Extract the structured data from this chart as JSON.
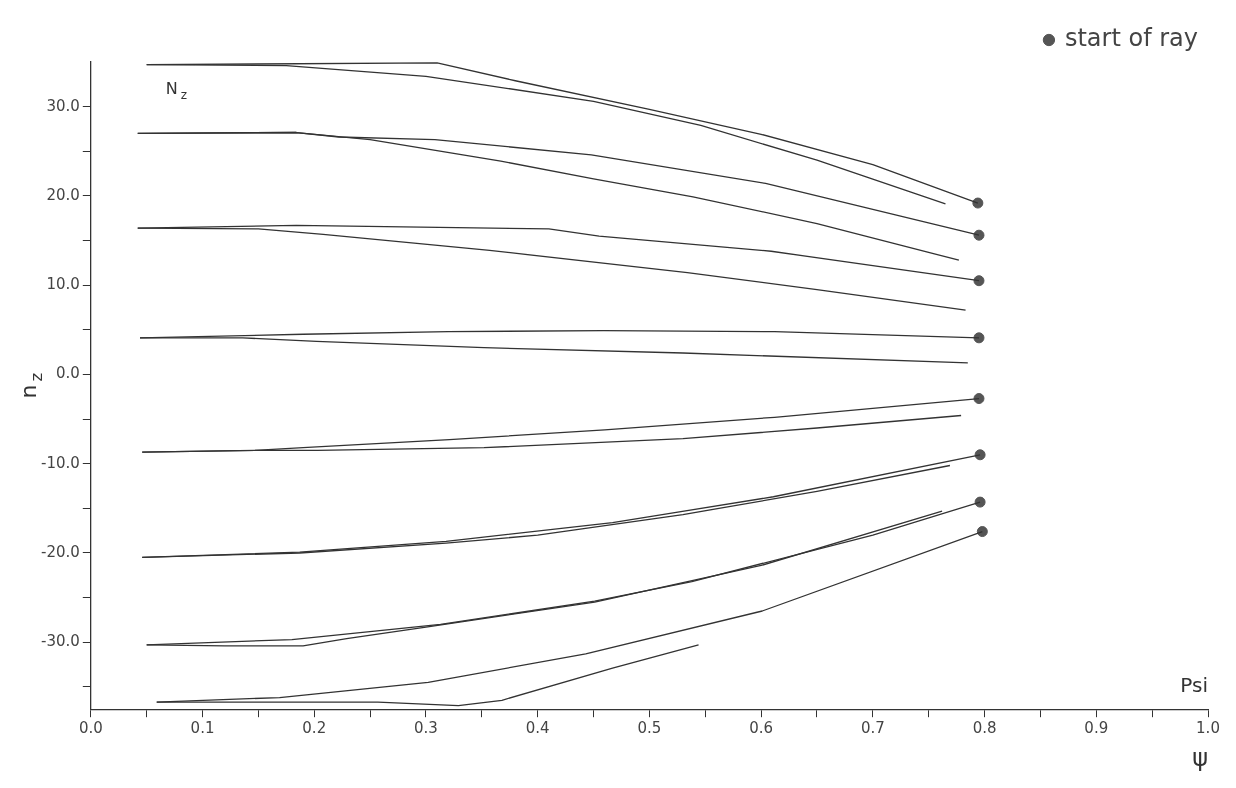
{
  "chart_data": {
    "type": "line",
    "xlabel": "ψ",
    "ylabel": "n$_{z}$",
    "legend": "top right",
    "line_style": "solid",
    "marker": "none",
    "grid": false,
    "xlim": [
      0,
      1
    ],
    "ylim": [
      -37.5,
      35
    ],
    "xticks": [
      {
        "value": 0,
        "label": "0.0"
      },
      {
        "value": 0.05,
        "label": null
      },
      0.1,
      {
        "value": 0.15,
        "label": null
      },
      0.2,
      {
        "value": 0.25,
        "label": null
      },
      0.3,
      {
        "value": 0.35,
        "label": null
      },
      0.4,
      {
        "value": 0.45,
        "label": null
      },
      0.5,
      {
        "value": 0.55,
        "label": null
      },
      0.6,
      {
        "value": 0.65,
        "label": null
      },
      0.7,
      {
        "value": 0.75,
        "label": null
      },
      0.8,
      {
        "value": 0.85,
        "label": null
      },
      0.9,
      {
        "value": 0.95,
        "label": null
      },
      {
        "value": 1,
        "label": "1.0"
      }
    ],
    "yticks": [
      {
        "value": -35,
        "label": null
      },
      {
        "value": -30,
        "label": "-30.0"
      },
      {
        "value": -25,
        "label": null
      },
      {
        "value": -20,
        "label": "-20.0"
      },
      {
        "value": -15,
        "label": null
      },
      {
        "value": -10,
        "label": "-10.0"
      },
      {
        "value": -5,
        "label": null
      },
      {
        "value": 0,
        "label": "0.0"
      },
      {
        "value": 5,
        "label": null
      },
      {
        "value": 10,
        "label": "10.0"
      },
      {
        "value": 15,
        "label": null
      },
      {
        "value": 20,
        "label": "20.0"
      },
      {
        "value": 25,
        "label": null
      },
      {
        "value": 30,
        "label": "30.0"
      }
    ],
    "annotations": [
      "N$_{z}$",
      "Psi"
    ],
    "series": [
      {
        "color": "#333333",
        "x": [
          0.05,
          0.31,
          0.38,
          0.5,
          0.6,
          0.7,
          0.794
        ],
        "values": [
          34.7,
          34.9,
          32.9,
          29.7,
          26.9,
          23.5,
          19.2
        ]
      },
      {
        "color": "#333333",
        "x": [
          0.05,
          0.175,
          0.3,
          0.45,
          0.546,
          0.65,
          0.765
        ],
        "values": [
          34.7,
          34.6,
          33.4,
          30.6,
          27.9,
          24.0,
          19.1
        ]
      },
      {
        "color": "#333333",
        "x": [
          0.042,
          0.184,
          0.222,
          0.308,
          0.448,
          0.604,
          0.795
        ],
        "values": [
          27.0,
          27.1,
          26.6,
          26.3,
          24.6,
          21.4,
          15.6
        ]
      },
      {
        "color": "#333333",
        "x": [
          0.042,
          0.184,
          0.25,
          0.367,
          0.45,
          0.539,
          0.65,
          0.777
        ],
        "values": [
          27.0,
          27.1,
          26.3,
          23.9,
          21.9,
          19.9,
          16.9,
          12.8
        ]
      },
      {
        "color": "#333333",
        "x": [
          0.042,
          0.184,
          0.41,
          0.455,
          0.609,
          0.795
        ],
        "values": [
          16.4,
          16.7,
          16.3,
          15.5,
          13.8,
          10.5
        ]
      },
      {
        "color": "#333333",
        "x": [
          0.042,
          0.15,
          0.208,
          0.357,
          0.534,
          0.65,
          0.783
        ],
        "values": [
          16.4,
          16.3,
          15.7,
          13.9,
          11.4,
          9.5,
          7.2
        ]
      },
      {
        "color": "#333333",
        "x": [
          0.044,
          0.19,
          0.32,
          0.459,
          0.612,
          0.795
        ],
        "values": [
          4.1,
          4.5,
          4.8,
          4.9,
          4.8,
          4.1
        ]
      },
      {
        "color": "#333333",
        "x": [
          0.044,
          0.136,
          0.202,
          0.352,
          0.53,
          0.785
        ],
        "values": [
          4.1,
          4.1,
          3.7,
          3.0,
          2.4,
          1.3
        ]
      },
      {
        "color": "#333333",
        "x": [
          0.046,
          0.147,
          0.19,
          0.321,
          0.46,
          0.612,
          0.795
        ],
        "values": [
          -8.7,
          -8.5,
          -8.2,
          -7.3,
          -6.2,
          -4.8,
          -2.7
        ]
      },
      {
        "color": "#333333",
        "x": [
          0.046,
          0.147,
          0.203,
          0.352,
          0.53,
          0.65,
          0.779
        ],
        "values": [
          -8.7,
          -8.5,
          -8.5,
          -8.2,
          -7.2,
          -6.0,
          -4.6
        ]
      },
      {
        "color": "#333333",
        "x": [
          0.046,
          0.187,
          0.318,
          0.467,
          0.611,
          0.796
        ],
        "values": [
          -20.5,
          -19.9,
          -18.7,
          -16.6,
          -13.7,
          -9.0
        ]
      },
      {
        "color": "#333333",
        "x": [
          0.046,
          0.187,
          0.318,
          0.4,
          0.53,
          0.65,
          0.769
        ],
        "values": [
          -20.5,
          -20.0,
          -18.9,
          -18.0,
          -15.7,
          -13.1,
          -10.2
        ]
      },
      {
        "color": "#333333",
        "x": [
          0.05,
          0.18,
          0.313,
          0.451,
          0.538,
          0.7,
          0.796
        ],
        "values": [
          -30.3,
          -29.7,
          -28.0,
          -25.4,
          -23.2,
          -18.0,
          -14.3
        ]
      },
      {
        "color": "#333333",
        "x": [
          0.05,
          0.12,
          0.19,
          0.229,
          0.3,
          0.451,
          0.6,
          0.762
        ],
        "values": [
          -30.3,
          -30.4,
          -30.4,
          -29.6,
          -28.3,
          -25.5,
          -21.4,
          -15.3
        ]
      },
      {
        "color": "#333333",
        "x": [
          0.059,
          0.169,
          0.302,
          0.443,
          0.601,
          0.798
        ],
        "values": [
          -36.7,
          -36.2,
          -34.5,
          -31.3,
          -26.5,
          -17.6
        ]
      },
      {
        "color": "#333333",
        "x": [
          0.059,
          0.257,
          0.329,
          0.368,
          0.467,
          0.544
        ],
        "values": [
          -36.7,
          -36.7,
          -37.1,
          -36.5,
          -32.9,
          -30.3
        ]
      },
      {
        "type": "scatter",
        "name": "start of ray",
        "color": "#555555",
        "marker": "circle",
        "x": [
          0.794,
          0.795,
          0.795,
          0.795,
          0.795,
          0.796,
          0.796,
          0.798
        ],
        "values": [
          19.2,
          15.6,
          10.5,
          4.1,
          -2.7,
          -9.0,
          -14.3,
          -17.6
        ]
      }
    ]
  }
}
